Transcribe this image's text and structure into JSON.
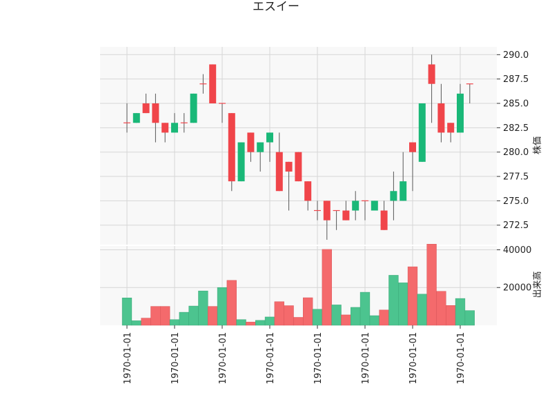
{
  "chart_data": {
    "type": "candlestick",
    "title": "エスイー",
    "price_axis_label": "株価",
    "volume_axis_label": "出来高",
    "price_ticks": [
      "272.5",
      "275.0",
      "277.5",
      "280.0",
      "282.5",
      "285.0",
      "287.5",
      "290.0"
    ],
    "price_tick_values": [
      272.5,
      275.0,
      277.5,
      280.0,
      282.5,
      285.0,
      287.5,
      290.0
    ],
    "volume_ticks": [
      "20000",
      "40000"
    ],
    "volume_tick_values": [
      20000,
      40000
    ],
    "x_tick_labels": [
      "1970-01-01",
      "1970-01-01",
      "1970-01-01",
      "1970-01-01",
      "1970-01-01",
      "1970-01-01",
      "1970-01-01",
      "1970-01-01"
    ],
    "x_tick_indices": [
      0,
      5,
      10,
      15,
      20,
      25,
      30,
      35
    ],
    "price_ylim": [
      270.5,
      290.8
    ],
    "volume_ylim": [
      0,
      42000
    ],
    "grid": true,
    "colors": {
      "up": "#1ab878",
      "down": "#f0454a",
      "up_volume": "#4cc48f",
      "down_volume": "#f46a6c",
      "wick": "#555555",
      "plot_bg": "#f8f8f8",
      "grid": "#d6d6d6"
    },
    "candles": [
      {
        "o": 283,
        "h": 285,
        "l": 282,
        "c": 283,
        "v": 14500
      },
      {
        "o": 283,
        "h": 284,
        "l": 283,
        "c": 284,
        "v": 2400
      },
      {
        "o": 285,
        "h": 286,
        "l": 284,
        "c": 284,
        "v": 3800
      },
      {
        "o": 285,
        "h": 286,
        "l": 281,
        "c": 283,
        "v": 10000
      },
      {
        "o": 283,
        "h": 283,
        "l": 281,
        "c": 282,
        "v": 10000
      },
      {
        "o": 282,
        "h": 284,
        "l": 282,
        "c": 283,
        "v": 3000
      },
      {
        "o": 283,
        "h": 284,
        "l": 282,
        "c": 283,
        "v": 6900
      },
      {
        "o": 283,
        "h": 286,
        "l": 283,
        "c": 286,
        "v": 10200
      },
      {
        "o": 287,
        "h": 288,
        "l": 286,
        "c": 287,
        "v": 18200
      },
      {
        "o": 289,
        "h": 289,
        "l": 285,
        "c": 285,
        "v": 10000
      },
      {
        "o": 285,
        "h": 285,
        "l": 283,
        "c": 285,
        "v": 20000
      },
      {
        "o": 284,
        "h": 284,
        "l": 276,
        "c": 277,
        "v": 23800
      },
      {
        "o": 277,
        "h": 281,
        "l": 277,
        "c": 281,
        "v": 3000
      },
      {
        "o": 282,
        "h": 282,
        "l": 279,
        "c": 280,
        "v": 1700
      },
      {
        "o": 280,
        "h": 281,
        "l": 278,
        "c": 281,
        "v": 2600
      },
      {
        "o": 281,
        "h": 282,
        "l": 279,
        "c": 282,
        "v": 4400
      },
      {
        "o": 280,
        "h": 282,
        "l": 276,
        "c": 276,
        "v": 12500
      },
      {
        "o": 279,
        "h": 279,
        "l": 274,
        "c": 278,
        "v": 10400
      },
      {
        "o": 280,
        "h": 280,
        "l": 277,
        "c": 277,
        "v": 4200
      },
      {
        "o": 277,
        "h": 277,
        "l": 274,
        "c": 275,
        "v": 14600
      },
      {
        "o": 274,
        "h": 275,
        "l": 273,
        "c": 274,
        "v": 8500
      },
      {
        "o": 275,
        "h": 275,
        "l": 271,
        "c": 273,
        "v": 40200
      },
      {
        "o": 274,
        "h": 274,
        "l": 272,
        "c": 274,
        "v": 10800
      },
      {
        "o": 274,
        "h": 275,
        "l": 273,
        "c": 273,
        "v": 5500
      },
      {
        "o": 274,
        "h": 276,
        "l": 273,
        "c": 275,
        "v": 9500
      },
      {
        "o": 275,
        "h": 275,
        "l": 273,
        "c": 275,
        "v": 17500
      },
      {
        "o": 274,
        "h": 275,
        "l": 274,
        "c": 275,
        "v": 5100
      },
      {
        "o": 274,
        "h": 275,
        "l": 272,
        "c": 272,
        "v": 8100
      },
      {
        "o": 275,
        "h": 278,
        "l": 273,
        "c": 276,
        "v": 26500
      },
      {
        "o": 275,
        "h": 280,
        "l": 275,
        "c": 277,
        "v": 22500
      },
      {
        "o": 281,
        "h": 281,
        "l": 276,
        "c": 280,
        "v": 31000
      },
      {
        "o": 279,
        "h": 285,
        "l": 279,
        "c": 285,
        "v": 16500
      },
      {
        "o": 289,
        "h": 290,
        "l": 283,
        "c": 287,
        "v": 43000
      },
      {
        "o": 285,
        "h": 287,
        "l": 281,
        "c": 282,
        "v": 18000
      },
      {
        "o": 283,
        "h": 283,
        "l": 281,
        "c": 282,
        "v": 10500
      },
      {
        "o": 282,
        "h": 287,
        "l": 282,
        "c": 286,
        "v": 14200
      },
      {
        "o": 287,
        "h": 287,
        "l": 285,
        "c": 287,
        "v": 7800
      }
    ]
  }
}
